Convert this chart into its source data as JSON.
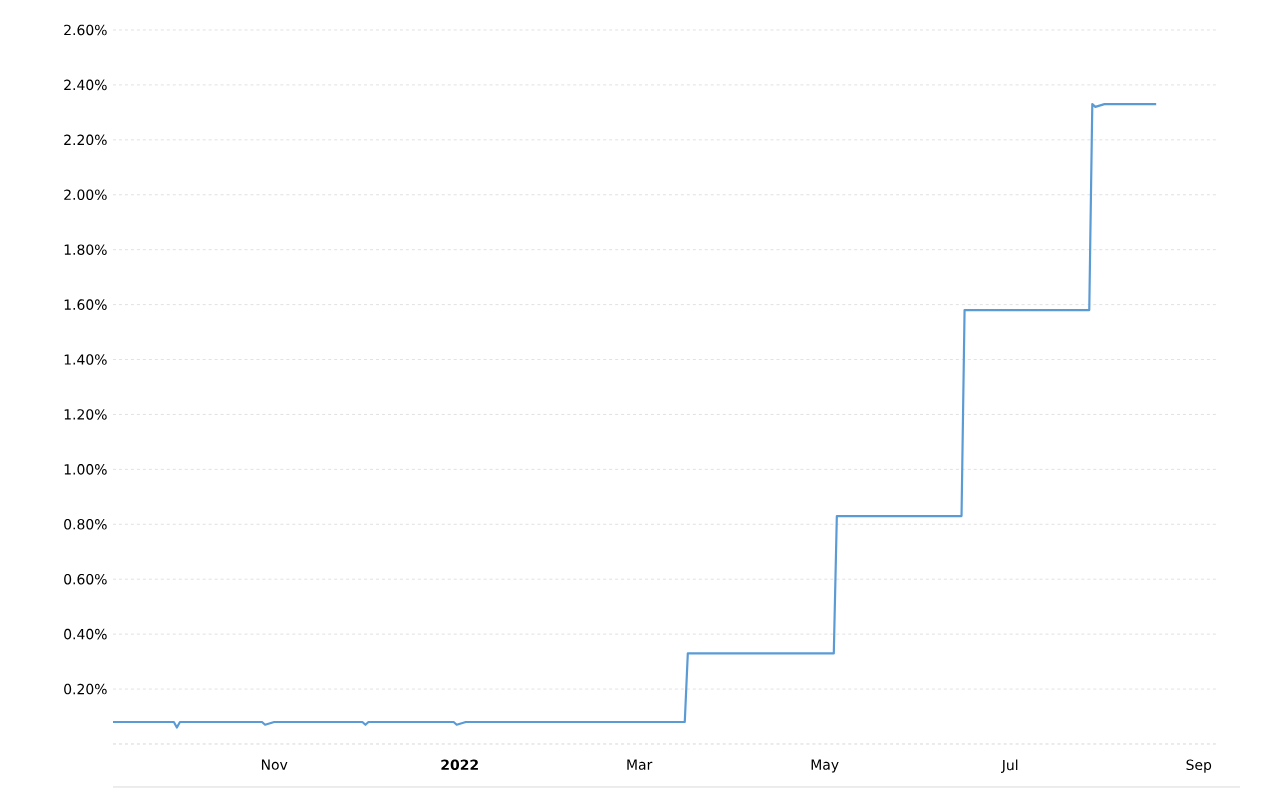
{
  "chart_data": {
    "type": "line",
    "x": [
      "2021-09-09",
      "2021-09-29",
      "2021-09-30",
      "2021-10-01",
      "2021-10-28",
      "2021-10-29",
      "2021-11-01",
      "2021-11-30",
      "2021-12-01",
      "2021-12-02",
      "2021-12-30",
      "2021-12-31",
      "2022-01-03",
      "2022-03-16",
      "2022-03-17",
      "2022-05-04",
      "2022-05-05",
      "2022-06-15",
      "2022-06-16",
      "2022-07-27",
      "2022-07-28",
      "2022-07-29",
      "2022-08-01",
      "2022-08-18"
    ],
    "series": [
      {
        "color": "#5b9bd5",
        "values": [
          0.08,
          0.08,
          0.06,
          0.08,
          0.08,
          0.07,
          0.08,
          0.08,
          0.07,
          0.08,
          0.08,
          0.07,
          0.08,
          0.08,
          0.33,
          0.33,
          0.83,
          0.83,
          1.58,
          1.58,
          2.33,
          2.32,
          2.33,
          2.33
        ]
      }
    ],
    "xlim": [
      "2021-09-09",
      "2022-09-07"
    ],
    "xticks": [
      {
        "value": "2021-11-01",
        "label": "Nov"
      },
      {
        "value": "2022-01-01",
        "label": "**2022**"
      },
      {
        "value": "2022-03-01",
        "label": "Mar"
      },
      {
        "value": "2022-05-01",
        "label": "May"
      },
      {
        "value": "2022-07-01",
        "label": "Jul"
      },
      {
        "value": "2022-09-01",
        "label": "Sep"
      }
    ],
    "ylim": [
      0,
      2.6
    ],
    "yticks": [
      {
        "value": 0.2,
        "label": "0.20%"
      },
      {
        "value": 0.4,
        "label": "0.40%"
      },
      {
        "value": 0.6,
        "label": "0.60%"
      },
      {
        "value": 0.8,
        "label": "0.80%"
      },
      {
        "value": 1.0,
        "label": "1.00%"
      },
      {
        "value": 1.2,
        "label": "1.20%"
      },
      {
        "value": 1.4,
        "label": "1.40%"
      },
      {
        "value": 1.6,
        "label": "1.60%"
      },
      {
        "value": 1.8,
        "label": "1.80%"
      },
      {
        "value": 2.0,
        "label": "2.00%"
      },
      {
        "value": 2.2,
        "label": "2.20%"
      },
      {
        "value": 2.4,
        "label": "2.40%"
      },
      {
        "value": 2.6,
        "label": "2.60%"
      }
    ],
    "grid": "y",
    "marker": "none"
  }
}
